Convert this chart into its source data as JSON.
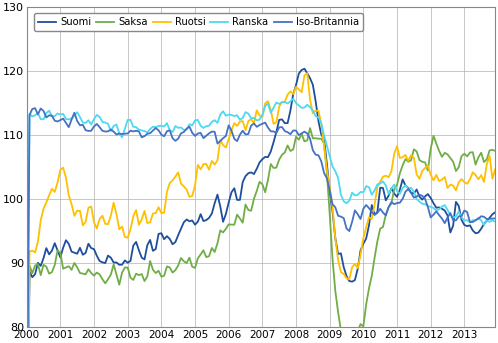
{
  "title": "",
  "ylabel": "",
  "xlabel": "",
  "ylim": [
    80,
    130
  ],
  "xlim": [
    2000.0,
    2013.9167
  ],
  "yticks": [
    80,
    90,
    100,
    110,
    120,
    130
  ],
  "xtick_labels": [
    "2000",
    "2001",
    "2002",
    "2003",
    "2004",
    "2005",
    "2006",
    "2007",
    "2008",
    "2009",
    "2010",
    "2011",
    "2012",
    "2013"
  ],
  "legend": [
    "Suomi",
    "Saksa",
    "Ruotsi",
    "Ranska",
    "Iso-Britannia"
  ],
  "colors": {
    "Suomi": "#1f4e9c",
    "Saksa": "#70ad47",
    "Ruotsi": "#ffc000",
    "Ranska": "#4dd9f0",
    "Iso-Britannia": "#4472c4"
  },
  "linewidth": 1.3,
  "grid_color": "#b0b0b0",
  "bg_color": "#ffffff",
  "n_months": 168
}
